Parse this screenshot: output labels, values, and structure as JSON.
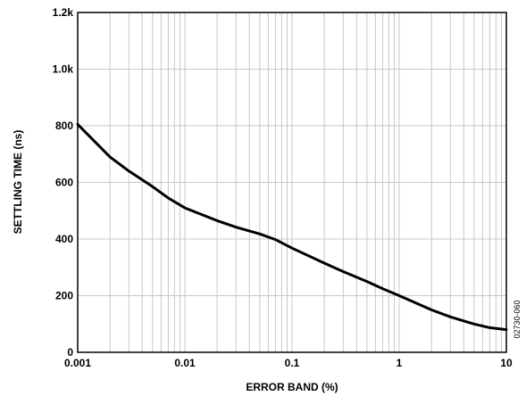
{
  "chart_data": {
    "type": "line",
    "xscale": "log",
    "xlabel": "ERROR BAND (%)",
    "ylabel": "SETTLING TIME (ns)",
    "xlim": [
      0.001,
      10
    ],
    "ylim": [
      0,
      1200
    ],
    "grid": true,
    "x_ticks": [
      {
        "value": 0.001,
        "label": "0.001"
      },
      {
        "value": 0.01,
        "label": "0.01"
      },
      {
        "value": 0.1,
        "label": "0.1"
      },
      {
        "value": 1,
        "label": "1"
      },
      {
        "value": 10,
        "label": "10"
      }
    ],
    "y_ticks": [
      {
        "value": 0,
        "label": "0"
      },
      {
        "value": 200,
        "label": "200"
      },
      {
        "value": 400,
        "label": "400"
      },
      {
        "value": 600,
        "label": "600"
      },
      {
        "value": 800,
        "label": "800"
      },
      {
        "value": 1000,
        "label": "1.0k"
      },
      {
        "value": 1200,
        "label": "1.2k"
      }
    ],
    "series": [
      {
        "x": [
          0.001,
          0.002,
          0.003,
          0.005,
          0.007,
          0.01,
          0.02,
          0.03,
          0.05,
          0.07,
          0.1,
          0.2,
          0.3,
          0.5,
          0.7,
          1,
          2,
          3,
          5,
          7,
          10
        ],
        "y": [
          805,
          690,
          640,
          585,
          545,
          510,
          465,
          442,
          418,
          398,
          368,
          315,
          285,
          250,
          225,
          200,
          150,
          125,
          100,
          87,
          80
        ]
      }
    ]
  },
  "figure_id": "02730-060"
}
